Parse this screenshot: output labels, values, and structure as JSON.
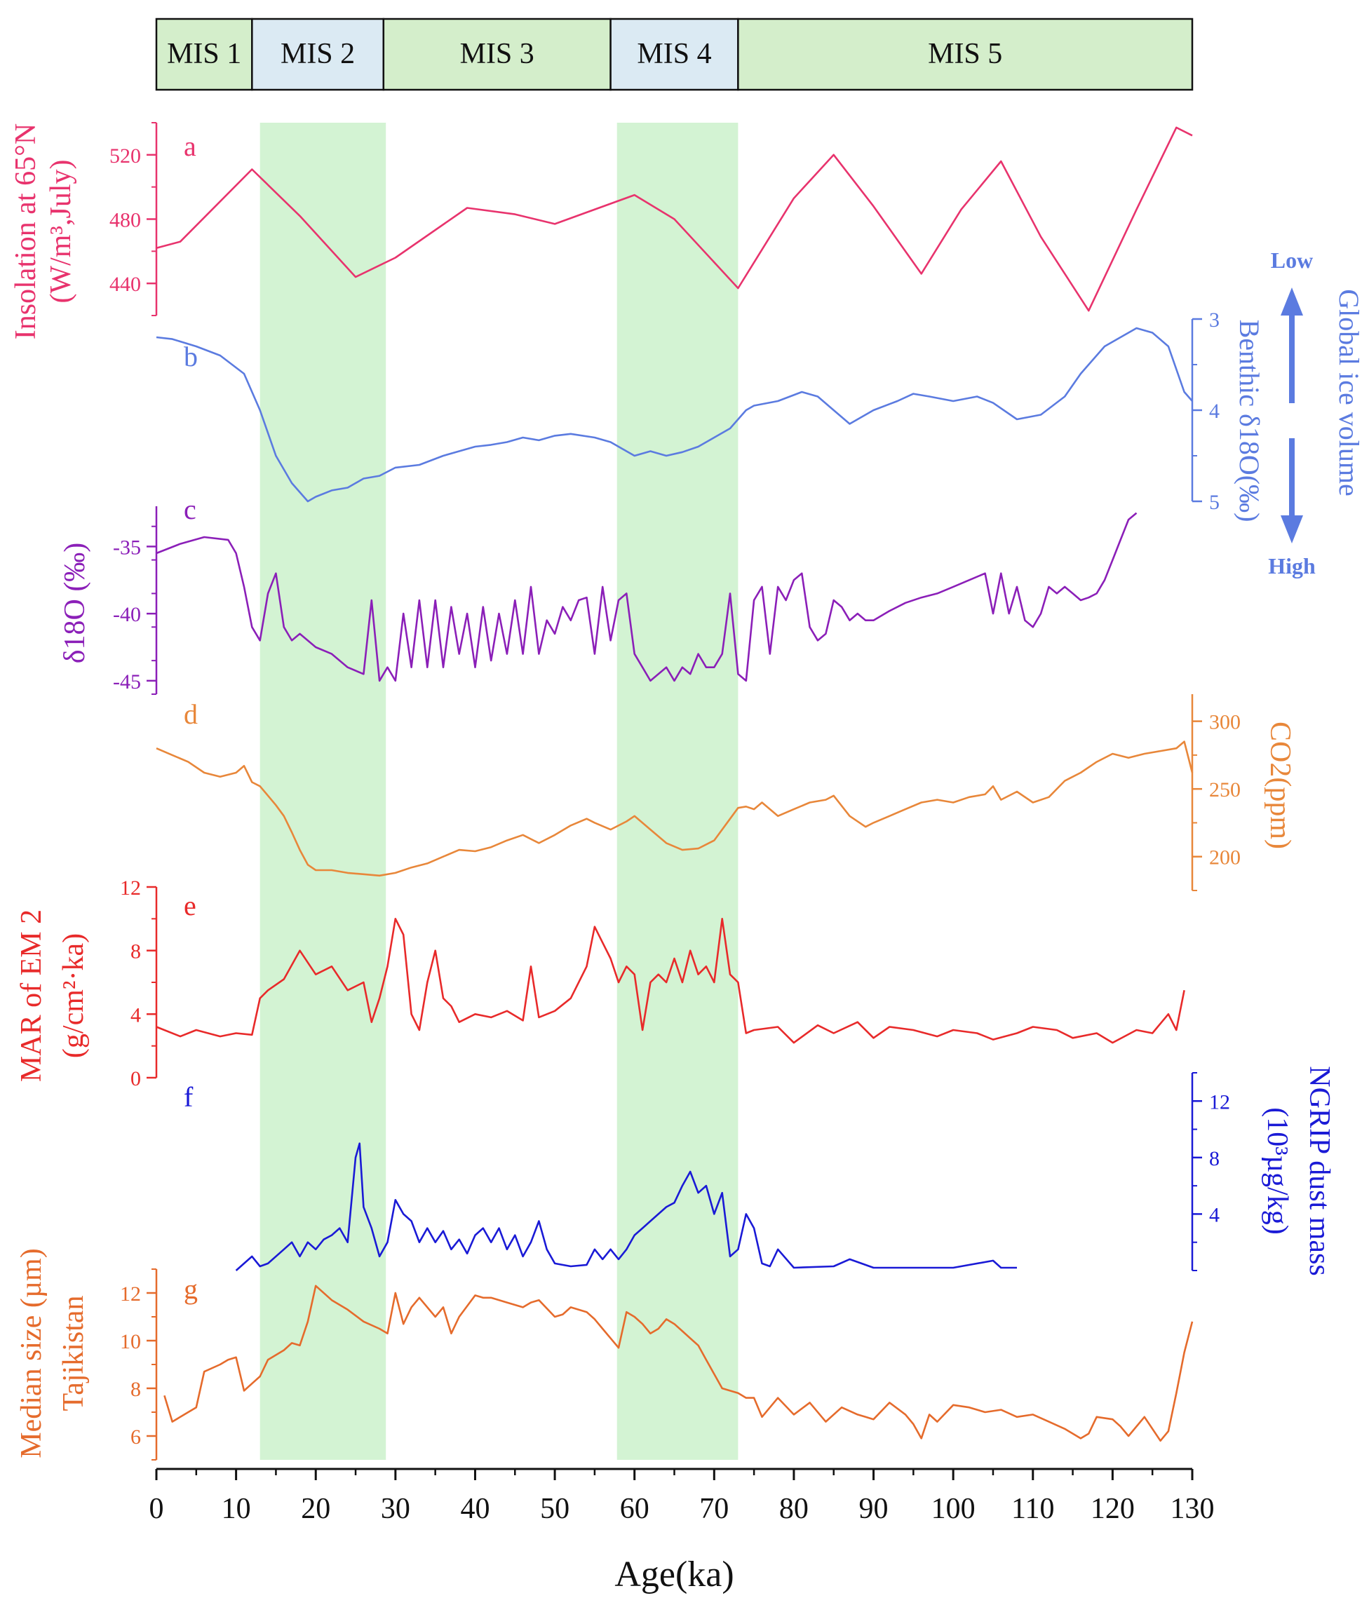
{
  "chart_data": {
    "type": "line",
    "x_axis": {
      "label": "Age(ka)",
      "range": [
        0,
        130
      ],
      "ticks": [
        0,
        10,
        20,
        30,
        40,
        50,
        60,
        70,
        80,
        90,
        100,
        110,
        120,
        130
      ]
    },
    "mis_stages": [
      {
        "label": "MIS 1",
        "start": 0,
        "end": 12,
        "color": "#d4eecb"
      },
      {
        "label": "MIS 2",
        "start": 12,
        "end": 28.5,
        "color": "#dbeaf3"
      },
      {
        "label": "MIS 3",
        "start": 28.5,
        "end": 57,
        "color": "#d4eecb"
      },
      {
        "label": "MIS 4",
        "start": 57,
        "end": 73,
        "color": "#dbeaf3"
      },
      {
        "label": "MIS 5",
        "start": 73,
        "end": 130,
        "color": "#d4eecb"
      }
    ],
    "shaded_bands": [
      {
        "start": 13,
        "end": 28.8
      },
      {
        "start": 57.8,
        "end": 73
      }
    ],
    "panels": [
      {
        "letter": "a",
        "name": "insolation",
        "color": "#e8336d",
        "axis_side": "left",
        "ylabel_line1": "Insolation at 65°N",
        "ylabel_line2": "(W/m³,July)",
        "yrange": [
          420,
          540
        ],
        "ticks": [
          440,
          480,
          520
        ],
        "x": [
          0,
          3,
          12,
          18,
          25,
          30,
          39,
          45,
          50,
          60,
          65,
          73,
          80,
          85,
          90,
          96,
          101,
          106,
          111,
          117,
          123,
          128,
          130
        ],
        "y": [
          462,
          466,
          511,
          482,
          444,
          456,
          487,
          483,
          477,
          495,
          480,
          437,
          493,
          520,
          488,
          446,
          486,
          516,
          469,
          423,
          486,
          537,
          532
        ]
      },
      {
        "letter": "b",
        "name": "benthic_d18o",
        "color": "#5b7be0",
        "axis_side": "right",
        "ylabel_main": "Benthic δ18O(‰)",
        "ylabel_extra": "Global ice volume",
        "arrow_low": "Low",
        "arrow_high": "High",
        "yrange": [
          3,
          5
        ],
        "inverted": true,
        "ticks": [
          3,
          4,
          5
        ],
        "x": [
          0,
          2,
          5,
          8,
          11,
          13,
          15,
          17,
          19,
          20,
          22,
          24,
          26,
          28,
          30,
          33,
          36,
          38,
          40,
          42,
          44,
          46,
          48,
          50,
          52,
          55,
          57,
          59,
          60,
          62,
          64,
          66,
          68,
          70,
          72,
          74,
          75,
          78,
          81,
          83,
          85,
          87,
          90,
          93,
          95,
          97,
          100,
          103,
          105,
          108,
          111,
          114,
          116,
          119,
          121,
          123,
          125,
          127,
          129,
          130
        ],
        "y": [
          3.2,
          3.22,
          3.3,
          3.4,
          3.6,
          4.0,
          4.5,
          4.8,
          5.0,
          4.95,
          4.88,
          4.85,
          4.75,
          4.72,
          4.63,
          4.6,
          4.5,
          4.45,
          4.4,
          4.38,
          4.35,
          4.3,
          4.33,
          4.28,
          4.26,
          4.3,
          4.35,
          4.45,
          4.5,
          4.45,
          4.5,
          4.46,
          4.4,
          4.3,
          4.2,
          4.0,
          3.95,
          3.9,
          3.8,
          3.85,
          4.0,
          4.15,
          4.0,
          3.9,
          3.82,
          3.85,
          3.9,
          3.85,
          3.92,
          4.1,
          4.05,
          3.85,
          3.6,
          3.3,
          3.2,
          3.1,
          3.15,
          3.3,
          3.8,
          3.9
        ]
      },
      {
        "letter": "c",
        "name": "ngrip_d18o",
        "color": "#8b1fb8",
        "axis_side": "left",
        "ylabel": "δ18O (‰)",
        "yrange": [
          -46,
          -32
        ],
        "ticks": [
          -35,
          -40,
          -45
        ],
        "x": [
          0,
          3,
          6,
          9,
          10,
          11,
          12,
          13,
          14,
          15,
          16,
          17,
          18,
          20,
          22,
          24,
          26,
          27,
          28,
          29,
          30,
          31,
          32,
          33,
          34,
          35,
          36,
          37,
          38,
          39,
          40,
          41,
          42,
          43,
          44,
          45,
          46,
          47,
          48,
          49,
          50,
          51,
          52,
          53,
          54,
          55,
          56,
          57,
          58,
          59,
          60,
          61,
          62,
          63,
          64,
          65,
          66,
          67,
          68,
          69,
          70,
          71,
          72,
          73,
          74,
          75,
          76,
          77,
          78,
          79,
          80,
          81,
          82,
          83,
          84,
          85,
          86,
          87,
          88,
          89,
          90,
          92,
          94,
          96,
          98,
          100,
          102,
          104,
          105,
          106,
          107,
          108,
          109,
          110,
          111,
          112,
          113,
          114,
          115,
          116,
          117,
          118,
          119,
          120,
          121,
          122,
          123
        ],
        "y": [
          -35.5,
          -34.8,
          -34.3,
          -34.5,
          -35.5,
          -38,
          -41,
          -42,
          -38.5,
          -37,
          -41,
          -42,
          -41.5,
          -42.5,
          -43,
          -44,
          -44.5,
          -39,
          -45,
          -44,
          -45,
          -40,
          -44,
          -39,
          -44,
          -39,
          -44,
          -39.5,
          -43,
          -40,
          -44,
          -39.5,
          -43.5,
          -40,
          -43,
          -39,
          -43,
          -38,
          -43,
          -40.5,
          -41.5,
          -39.5,
          -40.5,
          -39,
          -38.8,
          -43,
          -38,
          -42,
          -39,
          -38.5,
          -43,
          -44,
          -45,
          -44.5,
          -44,
          -45,
          -44,
          -44.5,
          -43,
          -44,
          -44,
          -43,
          -38.5,
          -44.5,
          -45,
          -39,
          -38,
          -43,
          -38,
          -39,
          -37.5,
          -37,
          -41,
          -42,
          -41.5,
          -39,
          -39.5,
          -40.5,
          -40,
          -40.5,
          -40.5,
          -39.8,
          -39.2,
          -38.8,
          -38.5,
          -38,
          -37.5,
          -37,
          -40,
          -37,
          -40,
          -38,
          -40.5,
          -41,
          -40,
          -38,
          -38.5,
          -38,
          -38.5,
          -39,
          -38.8,
          -38.5,
          -37.5,
          -36,
          -34.5,
          -33,
          -32.5
        ]
      },
      {
        "letter": "d",
        "name": "co2",
        "color": "#e8873a",
        "axis_side": "right",
        "ylabel": "CO2(ppm)",
        "yrange": [
          175,
          320
        ],
        "ticks": [
          200,
          250,
          300
        ],
        "x": [
          0,
          2,
          4,
          6,
          8,
          10,
          11,
          12,
          13,
          14,
          15,
          16,
          17,
          18,
          19,
          20,
          22,
          24,
          26,
          28,
          30,
          32,
          34,
          36,
          38,
          40,
          42,
          44,
          46,
          48,
          50,
          52,
          54,
          55,
          57,
          59,
          60,
          62,
          64,
          66,
          68,
          70,
          72,
          73,
          74,
          75,
          76,
          78,
          80,
          82,
          84,
          85,
          87,
          89,
          90,
          92,
          94,
          96,
          98,
          100,
          102,
          104,
          105,
          106,
          108,
          110,
          112,
          114,
          116,
          118,
          120,
          122,
          124,
          126,
          128,
          129,
          130
        ],
        "y": [
          280,
          275,
          270,
          262,
          259,
          262,
          267,
          255,
          252,
          245,
          238,
          230,
          218,
          205,
          194,
          190,
          190,
          188,
          187,
          186,
          188,
          192,
          195,
          200,
          205,
          204,
          207,
          212,
          216,
          210,
          216,
          223,
          228,
          225,
          220,
          226,
          230,
          220,
          210,
          205,
          206,
          212,
          228,
          236,
          237,
          235,
          240,
          230,
          235,
          240,
          242,
          245,
          230,
          222,
          225,
          230,
          235,
          240,
          242,
          240,
          244,
          246,
          252,
          242,
          248,
          240,
          244,
          256,
          262,
          270,
          276,
          273,
          276,
          278,
          280,
          285,
          262
        ]
      },
      {
        "letter": "e",
        "name": "mar_em2",
        "color": "#e82a2a",
        "axis_side": "left",
        "ylabel_line1": "MAR of EM 2",
        "ylabel_line2": "(g/cm²·ka)",
        "yrange": [
          0,
          12
        ],
        "ticks": [
          0,
          4,
          8,
          12
        ],
        "x": [
          0,
          3,
          5,
          8,
          10,
          12,
          13,
          14,
          16,
          18,
          20,
          22,
          24,
          26,
          27,
          28,
          29,
          30,
          31,
          32,
          33,
          34,
          35,
          36,
          37,
          38,
          40,
          42,
          44,
          46,
          47,
          48,
          50,
          52,
          54,
          55,
          56,
          57,
          58,
          59,
          60,
          61,
          62,
          63,
          64,
          65,
          66,
          67,
          68,
          69,
          70,
          71,
          72,
          73,
          74,
          75,
          78,
          80,
          83,
          85,
          88,
          90,
          92,
          95,
          98,
          100,
          103,
          105,
          108,
          110,
          113,
          115,
          118,
          120,
          123,
          125,
          127,
          128,
          129
        ],
        "y": [
          3.2,
          2.6,
          3.0,
          2.6,
          2.8,
          2.7,
          5.0,
          5.5,
          6.2,
          8.0,
          6.5,
          7.0,
          5.5,
          6.0,
          3.5,
          5.0,
          7.0,
          10.0,
          9.0,
          4.0,
          3.0,
          6.0,
          8.0,
          5.0,
          4.5,
          3.5,
          4.0,
          3.8,
          4.2,
          3.6,
          7.0,
          3.8,
          4.2,
          5.0,
          7.0,
          9.5,
          8.5,
          7.5,
          6.0,
          7.0,
          6.5,
          3.0,
          6.0,
          6.5,
          6.0,
          7.5,
          6.0,
          8.0,
          6.5,
          7.0,
          6.0,
          10.0,
          6.5,
          6.0,
          2.8,
          3.0,
          3.2,
          2.2,
          3.3,
          2.8,
          3.5,
          2.5,
          3.2,
          3.0,
          2.6,
          3.0,
          2.8,
          2.4,
          2.8,
          3.2,
          3.0,
          2.5,
          2.8,
          2.2,
          3.0,
          2.8,
          4.0,
          3.0,
          5.5
        ]
      },
      {
        "letter": "f",
        "name": "ngrip_dust",
        "color": "#1a1ad6",
        "axis_side": "right",
        "ylabel_line1": "NGRIP dust mass",
        "ylabel_line2": "(10³µg/kg)",
        "yrange": [
          0,
          14
        ],
        "ticks": [
          4,
          8,
          12
        ],
        "x": [
          10,
          11,
          12,
          13,
          14,
          16,
          17,
          18,
          19,
          20,
          21,
          22,
          23,
          24,
          25,
          25.5,
          26,
          27,
          28,
          29,
          30,
          31,
          32,
          33,
          34,
          35,
          36,
          37,
          38,
          39,
          40,
          41,
          42,
          43,
          44,
          45,
          46,
          47,
          48,
          49,
          50,
          52,
          54,
          55,
          56,
          57,
          58,
          59,
          60,
          61,
          62,
          63,
          64,
          65,
          66,
          67,
          68,
          69,
          70,
          71,
          72,
          73,
          74,
          75,
          76,
          77,
          78,
          80,
          85,
          87,
          88,
          90,
          100,
          105,
          106,
          108
        ],
        "y": [
          0,
          0.5,
          1.0,
          0.3,
          0.5,
          1.5,
          2.0,
          1.0,
          2.0,
          1.5,
          2.2,
          2.5,
          3.0,
          2.0,
          8.0,
          9.0,
          4.5,
          3.0,
          1.0,
          2.0,
          5.0,
          4.0,
          3.5,
          2.0,
          3.0,
          2.0,
          2.8,
          1.5,
          2.2,
          1.2,
          2.5,
          3.0,
          2.0,
          3.0,
          1.5,
          2.5,
          1.0,
          2.0,
          3.5,
          1.5,
          0.5,
          0.3,
          0.4,
          1.5,
          0.8,
          1.5,
          0.8,
          1.5,
          2.5,
          3.0,
          3.5,
          4.0,
          4.5,
          4.8,
          6.0,
          7.0,
          5.5,
          6.0,
          4.0,
          5.5,
          1.0,
          1.5,
          4.0,
          3.0,
          0.5,
          0.3,
          1.5,
          0.2,
          0.3,
          0.8,
          0.6,
          0.2,
          0.2,
          0.7,
          0.2,
          0.2
        ]
      },
      {
        "letter": "g",
        "name": "median_size",
        "color": "#e56b2c",
        "axis_side": "left",
        "ylabel_line1": "Median size (µm)",
        "ylabel_line2": "Tajikistan",
        "yrange": [
          5,
          13
        ],
        "ticks": [
          6,
          8,
          10,
          12
        ],
        "x": [
          1,
          2,
          3,
          4,
          5,
          6,
          8,
          9,
          10,
          11,
          12,
          13,
          14,
          16,
          17,
          18,
          19,
          20,
          22,
          24,
          26,
          28,
          29,
          30,
          31,
          32,
          33,
          35,
          36,
          37,
          38,
          40,
          41,
          42,
          44,
          46,
          47,
          48,
          50,
          51,
          52,
          54,
          55,
          56,
          57,
          58,
          59,
          60,
          61,
          62,
          63,
          64,
          65,
          66,
          67,
          68,
          69,
          70,
          71,
          72,
          73,
          74,
          75,
          76,
          78,
          80,
          82,
          84,
          86,
          88,
          89,
          90,
          92,
          94,
          95,
          96,
          97,
          98,
          100,
          102,
          104,
          106,
          108,
          110,
          112,
          114,
          116,
          117,
          118,
          120,
          121,
          122,
          124,
          126,
          127,
          128,
          129,
          130
        ],
        "y": [
          7.7,
          6.6,
          6.8,
          7.0,
          7.2,
          8.7,
          9.0,
          9.2,
          9.3,
          7.9,
          8.2,
          8.5,
          9.2,
          9.6,
          9.9,
          9.8,
          10.8,
          12.3,
          11.7,
          11.3,
          10.8,
          10.5,
          10.3,
          12.0,
          10.7,
          11.4,
          11.8,
          11.0,
          11.4,
          10.3,
          11.0,
          11.9,
          11.8,
          11.8,
          11.6,
          11.4,
          11.6,
          11.7,
          11.0,
          11.1,
          11.4,
          11.2,
          10.9,
          10.5,
          10.1,
          9.7,
          11.2,
          11.0,
          10.7,
          10.3,
          10.5,
          10.9,
          10.7,
          10.4,
          10.1,
          9.8,
          9.2,
          8.6,
          8.0,
          7.9,
          7.8,
          7.6,
          7.6,
          6.8,
          7.6,
          6.9,
          7.4,
          6.6,
          7.2,
          6.9,
          6.8,
          6.7,
          7.4,
          6.9,
          6.5,
          5.9,
          6.9,
          6.6,
          7.3,
          7.2,
          7.0,
          7.1,
          6.8,
          6.9,
          6.6,
          6.3,
          5.9,
          6.1,
          6.8,
          6.7,
          6.4,
          6.0,
          6.8,
          5.8,
          6.2,
          7.8,
          9.5,
          10.8
        ]
      }
    ]
  }
}
